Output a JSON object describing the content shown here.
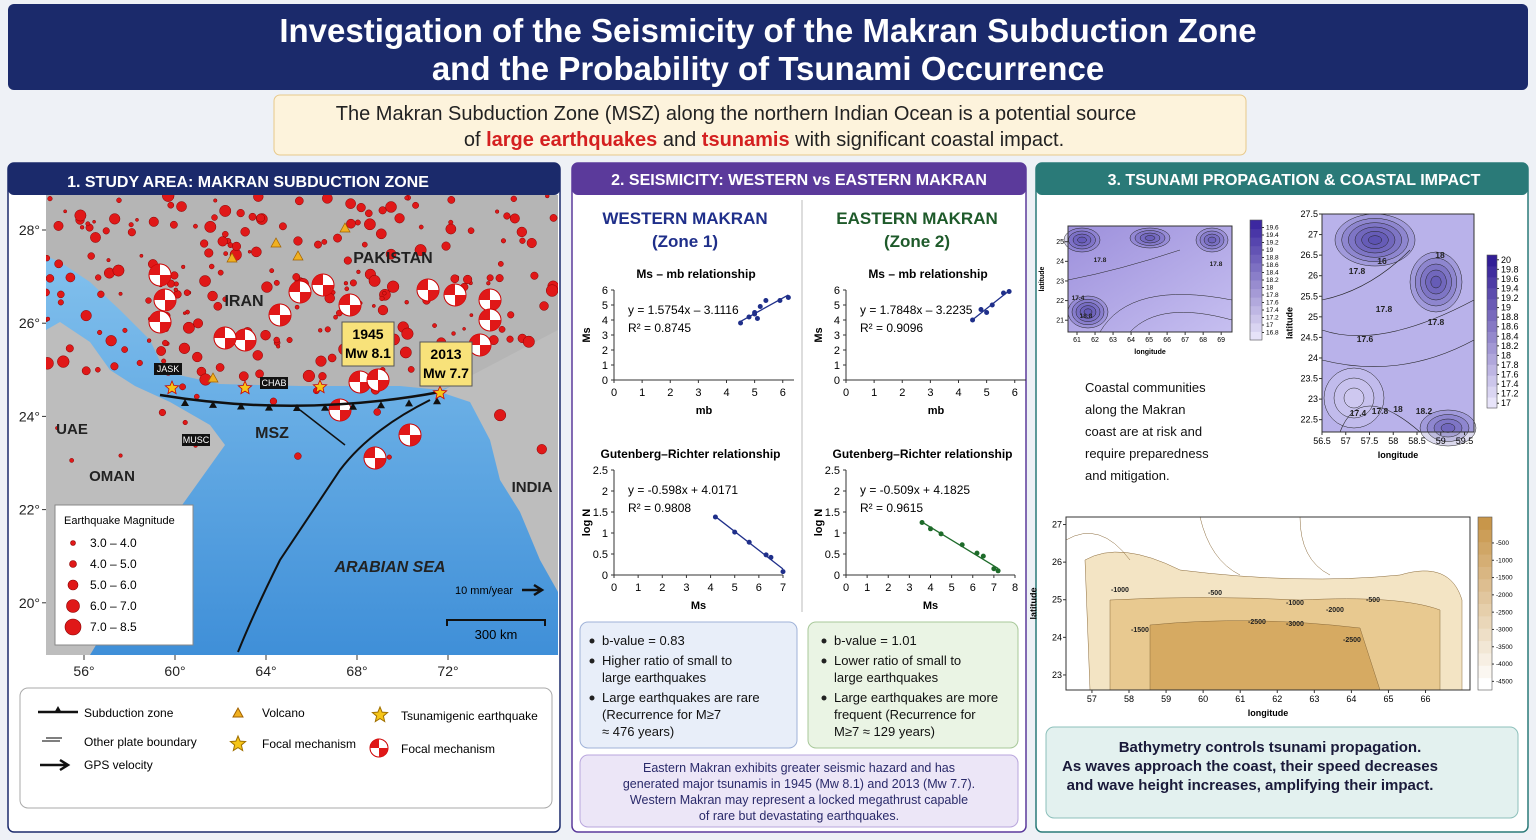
{
  "header": {
    "title_lines": [
      "Investigation of the Seismicity of the Makran Subduction Zone",
      "and the Probability of Tsunami Occurrence"
    ],
    "intro_line1": "The Makran Subduction Zone (MSZ) along the northern Indian Ocean is a potential source",
    "intro_line2": [
      "of ",
      "large earthquakes",
      " and ",
      "tsunamis",
      " with significant coastal impact."
    ]
  },
  "study_area": {
    "title": "1. STUDY AREA: MAKRAN SUBDUCTION ZONE",
    "lat_ticks": [
      {
        "value": 28,
        "label": "28°"
      },
      {
        "value": 26,
        "label": "26°"
      },
      {
        "value": 24,
        "label": "24°"
      },
      {
        "value": 22,
        "label": "22°"
      },
      {
        "value": 20,
        "label": "20°"
      }
    ],
    "lon_ticks": [
      {
        "value": 56,
        "label": "56°"
      },
      {
        "value": 60,
        "label": "60°"
      },
      {
        "value": 64,
        "label": "64°"
      },
      {
        "value": 68,
        "label": "68°"
      },
      {
        "value": 72,
        "label": "72°"
      }
    ],
    "places": [
      "PAKISTAN",
      "IRAN",
      "UAE",
      "OMAN",
      "INDIA",
      "MSZ",
      "ARABIAN SEA"
    ],
    "stations": [
      "JASK",
      "CHAB",
      "MUSC"
    ],
    "events": [
      {
        "year": "1945",
        "magnitude": "Mw 8.1"
      },
      {
        "year": "2013",
        "magnitude": "Mw 7.7"
      }
    ],
    "gps_label": "10 mm/year",
    "scale_label": "300 km",
    "magnitude_legend": {
      "title": "Earthquake Magnitude",
      "classes": [
        "3.0 – 4.0",
        "4.0 – 5.0",
        "5.0 – 6.0",
        "6.0 – 7.0",
        "7.0 – 8.5"
      ]
    },
    "legend": [
      "Subduction zone",
      "Volcano",
      "Tsunamigenic earthquake",
      "Other plate boundary",
      "Focal mechanism",
      "Focal mechanism",
      "GPS velocity"
    ]
  },
  "seismicity": {
    "title": "2. SEISMICITY: WESTERN vs EASTERN MAKRAN",
    "western": {
      "heading": "WESTERN MAKRAN",
      "zone": "(Zone 1)",
      "ms_mb": {
        "type": "scatter",
        "title": "Ms – mb relationship",
        "equation": "y = 1.5754x – 3.1116",
        "r2": "R² = 0.8745",
        "x_label": "mb",
        "y_label": "Ms",
        "x": [
          4.5,
          4.8,
          5.0,
          5.1,
          5.2,
          5.4,
          5.0,
          5.9,
          6.2
        ],
        "y": [
          3.8,
          4.2,
          4.5,
          4.1,
          4.9,
          5.3,
          4.4,
          5.3,
          5.5
        ],
        "xlim": [
          0,
          6.4
        ],
        "xticks": [
          0,
          1,
          2,
          3,
          4,
          5,
          6
        ],
        "ylim": [
          0,
          6
        ],
        "yticks": [
          0,
          1,
          2,
          3,
          4,
          5,
          6
        ],
        "color": "#1f2f8a",
        "trendline": true
      },
      "gr": {
        "type": "scatter",
        "title": "Gutenberg–Richter relationship",
        "equation": "y = -0.598x + 4.0171",
        "r2": "R² = 0.9808",
        "x_label": "Ms",
        "y_label": "log N",
        "x": [
          4.2,
          5.0,
          5.6,
          6.3,
          6.5,
          7.0
        ],
        "y": [
          1.38,
          1.02,
          0.78,
          0.48,
          0.42,
          0.08
        ],
        "xlim": [
          0,
          7
        ],
        "xticks": [
          0,
          1,
          2,
          3,
          4,
          5,
          6,
          7
        ],
        "ylim": [
          0,
          2.5
        ],
        "yticks": [
          0,
          0.5,
          1,
          1.5,
          2,
          2.5
        ],
        "color": "#1f2f8a",
        "trendline": true
      },
      "bullets": [
        [
          "b-value = 0.83"
        ],
        [
          "Higher ratio of small to",
          "large earthquakes"
        ],
        [
          "Large earthquakes are rare",
          "(Recurrence for M≥7",
          "≈ 476 years)"
        ]
      ]
    },
    "eastern": {
      "heading": "EASTERN MAKRAN",
      "zone": "(Zone 2)",
      "ms_mb": {
        "type": "scatter",
        "title": "Ms – mb relationship",
        "equation": "y = 1.7848x – 3.2235",
        "r2": "R² = 0.9096",
        "x_label": "mb",
        "y_label": "Ms",
        "x": [
          4.5,
          4.8,
          5.0,
          5.2,
          5.6,
          5.8
        ],
        "y": [
          4.0,
          4.7,
          4.5,
          5.0,
          5.8,
          5.9
        ],
        "xlim": [
          0,
          6.4
        ],
        "xticks": [
          0,
          1,
          2,
          3,
          4,
          5,
          6
        ],
        "ylim": [
          0,
          6
        ],
        "yticks": [
          0,
          1,
          2,
          3,
          4,
          5,
          6
        ],
        "color": "#1f2f8a",
        "trendline": true
      },
      "gr": {
        "type": "scatter",
        "title": "Gutenberg–Richter relationship",
        "equation": "y = -0.509x + 4.1825",
        "r2": "R² = 0.9615",
        "x_label": "Ms",
        "y_label": "log N",
        "x": [
          3.6,
          4.0,
          4.5,
          5.5,
          6.2,
          6.5,
          7.0,
          7.2
        ],
        "y": [
          1.25,
          1.1,
          0.98,
          0.72,
          0.52,
          0.45,
          0.15,
          0.1
        ],
        "xlim": [
          0,
          8
        ],
        "xticks": [
          0,
          1,
          2,
          3,
          4,
          5,
          6,
          7,
          8
        ],
        "ylim": [
          0,
          2.5
        ],
        "yticks": [
          0,
          0.5,
          1,
          1.5,
          2,
          2.5
        ],
        "color": "#1e6b2a",
        "trendline": true
      },
      "bullets": [
        [
          "b-value = 1.01"
        ],
        [
          "Lower ratio of small to",
          "large earthquakes"
        ],
        [
          "Large earthquakes are more",
          "frequent (Recurrence for",
          "M≥7 ≈ 129 years)"
        ]
      ]
    },
    "summary": [
      "Eastern Makran exhibits greater seismic hazard and has",
      "generated major tsunamis in 1945 (Mw 8.1) and 2013 (Mw 7.7).",
      "Western Makran may represent a locked megathrust capable",
      "of rare but devastating earthquakes."
    ]
  },
  "propagation": {
    "title": "3. TSUNAMI PROPAGATION & COASTAL IMPACT",
    "map_a": {
      "x_label": "longitude",
      "y_label": "latitude",
      "xlim": [
        60.5,
        69.6
      ],
      "xticks": [
        61,
        62,
        63,
        64,
        65,
        66,
        67,
        68,
        69
      ],
      "ylim": [
        20.4,
        25.8
      ],
      "yticks": [
        21,
        22,
        23,
        24,
        25
      ],
      "contour_labels": [
        "17.8",
        "17.8",
        "17.4",
        "18.8"
      ],
      "colorbar": {
        "clim": [
          16.6,
          19.8
        ],
        "ticks": [
          19.6,
          19.4,
          19.2,
          19,
          18.8,
          18.6,
          18.4,
          18.2,
          18,
          17.8,
          17.6,
          17.4,
          17.2,
          17,
          16.8
        ]
      }
    },
    "map_b": {
      "x_label": "longitude",
      "y_label": "latitude",
      "xlim": [
        56.5,
        59.7
      ],
      "xticks": [
        56.5,
        57,
        57.5,
        58,
        58.5,
        59,
        59.5
      ],
      "ylim": [
        22.2,
        27.5
      ],
      "yticks": [
        22.5,
        23,
        23.5,
        24,
        24.5,
        25,
        25.5,
        26,
        26.5,
        27,
        27.5
      ],
      "contour_labels": [
        "16",
        "18",
        "17.8",
        "17.8",
        "17.8",
        "17.6",
        "17.4",
        "17.8",
        "18",
        "18.2"
      ],
      "colorbar": {
        "clim": [
          16.9,
          20.1
        ],
        "ticks": [
          20,
          19.8,
          19.6,
          19.4,
          19.2,
          19,
          18.8,
          18.6,
          18.4,
          18.2,
          18,
          17.8,
          17.6,
          17.4,
          17.2,
          17
        ]
      }
    },
    "coastal_text": [
      "Coastal communities",
      "along the Makran",
      "coast are at risk and",
      "require preparedness",
      "and mitigation."
    ],
    "bathymetry": {
      "x_label": "longitude",
      "y_label": "latitude",
      "xlim": [
        56.3,
        67.2
      ],
      "xticks": [
        57,
        58,
        59,
        60,
        61,
        62,
        63,
        64,
        65,
        66
      ],
      "ylim": [
        22.6,
        27.2
      ],
      "yticks": [
        23,
        24,
        25,
        26,
        27
      ],
      "contour_labels": [
        "-1000",
        "-500",
        "-1000",
        "-2000",
        "-500",
        "-1500",
        "-2500",
        "-3000",
        "-2500"
      ],
      "colorbar": {
        "clim": [
          -4750,
          250
        ],
        "ticks": [
          -500,
          -1000,
          -1500,
          -2000,
          -2500,
          -3000,
          -3500,
          -4000,
          -4500
        ]
      }
    },
    "caption": [
      "Bathymetry controls tsunami propagation.",
      "As waves approach the coast, their speed decreases",
      "and wave height increases, amplifying their impact."
    ]
  }
}
